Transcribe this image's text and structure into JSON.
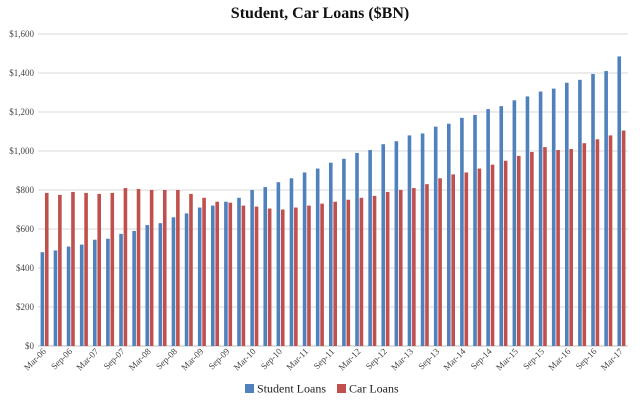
{
  "chart_data": {
    "type": "bar",
    "title": "Student, Car Loans ($BN)",
    "xlabel": "",
    "ylabel": "",
    "ylim": [
      0,
      1600
    ],
    "yticks": [
      0,
      200,
      400,
      600,
      800,
      1000,
      1200,
      1400,
      1600
    ],
    "ytick_labels": [
      "$0",
      "$200",
      "$400",
      "$600",
      "$800",
      "$1,000",
      "$1,200",
      "$1,400",
      "$1,600"
    ],
    "grid": true,
    "legend_position": "bottom-center",
    "categories": [
      "Mar-06",
      "Jun-06",
      "Sep-06",
      "Dec-06",
      "Mar-07",
      "Jun-07",
      "Sep-07",
      "Dec-07",
      "Mar-08",
      "Jun-08",
      "Sep-08",
      "Dec-08",
      "Mar-09",
      "Jun-09",
      "Sep-09",
      "Dec-09",
      "Mar-10",
      "Jun-10",
      "Sep-10",
      "Dec-10",
      "Mar-11",
      "Jun-11",
      "Sep-11",
      "Dec-11",
      "Mar-12",
      "Jun-12",
      "Sep-12",
      "Dec-12",
      "Mar-13",
      "Jun-13",
      "Sep-13",
      "Dec-13",
      "Mar-14",
      "Jun-14",
      "Sep-14",
      "Dec-14",
      "Mar-15",
      "Jun-15",
      "Sep-15",
      "Dec-15",
      "Mar-16",
      "Jun-16",
      "Sep-16",
      "Dec-16",
      "Mar-17"
    ],
    "x_tick_labels": [
      "Mar-06",
      "",
      "Sep-06",
      "",
      "Mar-07",
      "",
      "Sep-07",
      "",
      "Mar-08",
      "",
      "Sep-08",
      "",
      "Mar-09",
      "",
      "Sep-09",
      "",
      "Mar-10",
      "",
      "Sep-10",
      "",
      "Mar-11",
      "",
      "Sep-11",
      "",
      "Mar-12",
      "",
      "Sep-12",
      "",
      "Mar-13",
      "",
      "Sep-13",
      "",
      "Mar-14",
      "",
      "Sep-14",
      "",
      "Mar-15",
      "",
      "Sep-15",
      "",
      "Mar-16",
      "",
      "Sep-16",
      "",
      "Mar-17"
    ],
    "series": [
      {
        "name": "Student Loans",
        "color": "#4f81bd",
        "values": [
          481,
          490,
          510,
          520,
          545,
          550,
          575,
          590,
          620,
          630,
          660,
          680,
          710,
          720,
          740,
          760,
          800,
          815,
          840,
          860,
          890,
          910,
          940,
          960,
          990,
          1005,
          1035,
          1050,
          1080,
          1090,
          1125,
          1140,
          1170,
          1185,
          1215,
          1230,
          1260,
          1280,
          1305,
          1320,
          1350,
          1365,
          1395,
          1410,
          1485
        ]
      },
      {
        "name": "Car Loans",
        "color": "#c0504d",
        "values": [
          785,
          775,
          790,
          785,
          780,
          785,
          810,
          805,
          800,
          800,
          800,
          780,
          760,
          740,
          735,
          720,
          715,
          705,
          700,
          710,
          720,
          730,
          740,
          750,
          760,
          770,
          790,
          800,
          810,
          830,
          860,
          880,
          890,
          910,
          930,
          950,
          975,
          995,
          1020,
          1005,
          1010,
          1040,
          1060,
          1080,
          1105
        ]
      }
    ]
  }
}
